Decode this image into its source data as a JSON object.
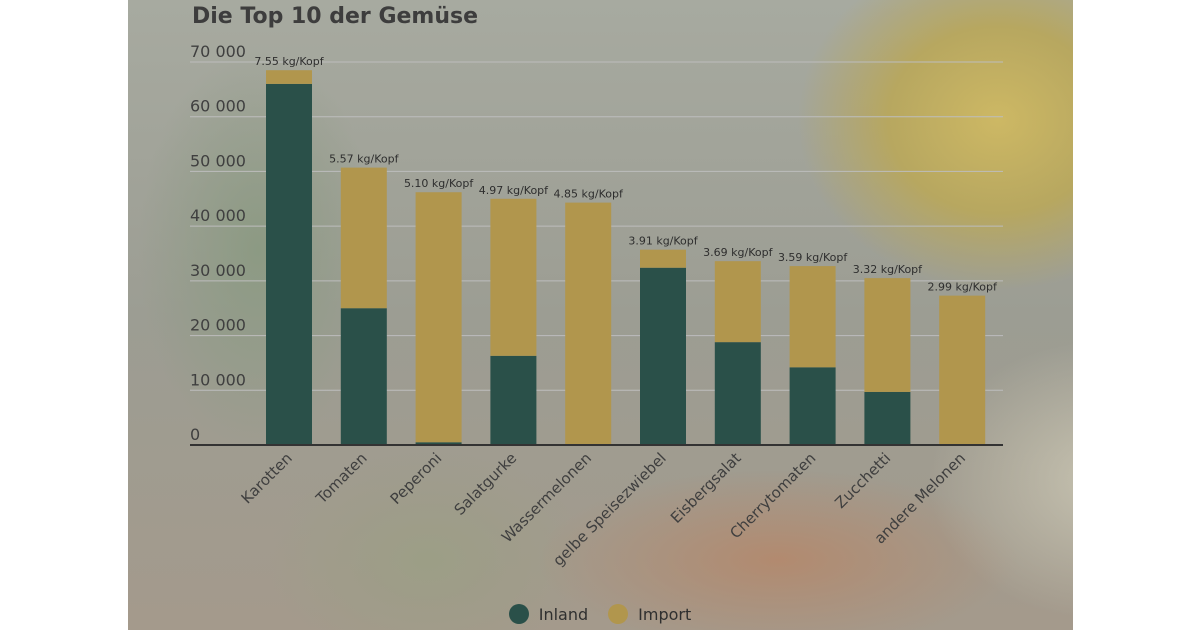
{
  "colors": {
    "inland": "#2a5049",
    "import": "#b1964d",
    "grid": "#bdbdbd",
    "axis": "#333333"
  },
  "chart_data": {
    "type": "bar",
    "stacked": true,
    "title": "Die Top 10 der Gemüse",
    "xlabel": "",
    "ylabel": "",
    "ylim": [
      0,
      70000
    ],
    "yticks": [
      0,
      10000,
      20000,
      30000,
      40000,
      50000,
      60000,
      70000
    ],
    "ytick_labels": [
      "0",
      "10 000",
      "20 000",
      "30 000",
      "40 000",
      "50 000",
      "60 000",
      "70 000"
    ],
    "grid": true,
    "legend_position": "bottom",
    "categories": [
      "Karotten",
      "Tomaten",
      "Peperoni",
      "Salatgurke",
      "Wassermelonen",
      "gelbe Speisezwiebel",
      "Eisbergsalat",
      "Cherrytomaten",
      "Zucchetti",
      "andere Melonen"
    ],
    "series": [
      {
        "name": "Inland",
        "values": [
          66000,
          25000,
          500,
          16300,
          0,
          32400,
          18800,
          14200,
          9700,
          0
        ]
      },
      {
        "name": "Import",
        "values": [
          2500,
          25700,
          45700,
          28700,
          44300,
          3300,
          14800,
          18500,
          20800,
          27300
        ]
      }
    ],
    "data_labels": [
      "7.55 kg/Kopf",
      "5.57 kg/Kopf",
      "5.10 kg/Kopf",
      "4.97 kg/Kopf",
      "4.85 kg/Kopf",
      "3.91 kg/Kopf",
      "3.69 kg/Kopf",
      "3.59 kg/Kopf",
      "3.32 kg/Kopf",
      "2.99 kg/Kopf"
    ]
  }
}
